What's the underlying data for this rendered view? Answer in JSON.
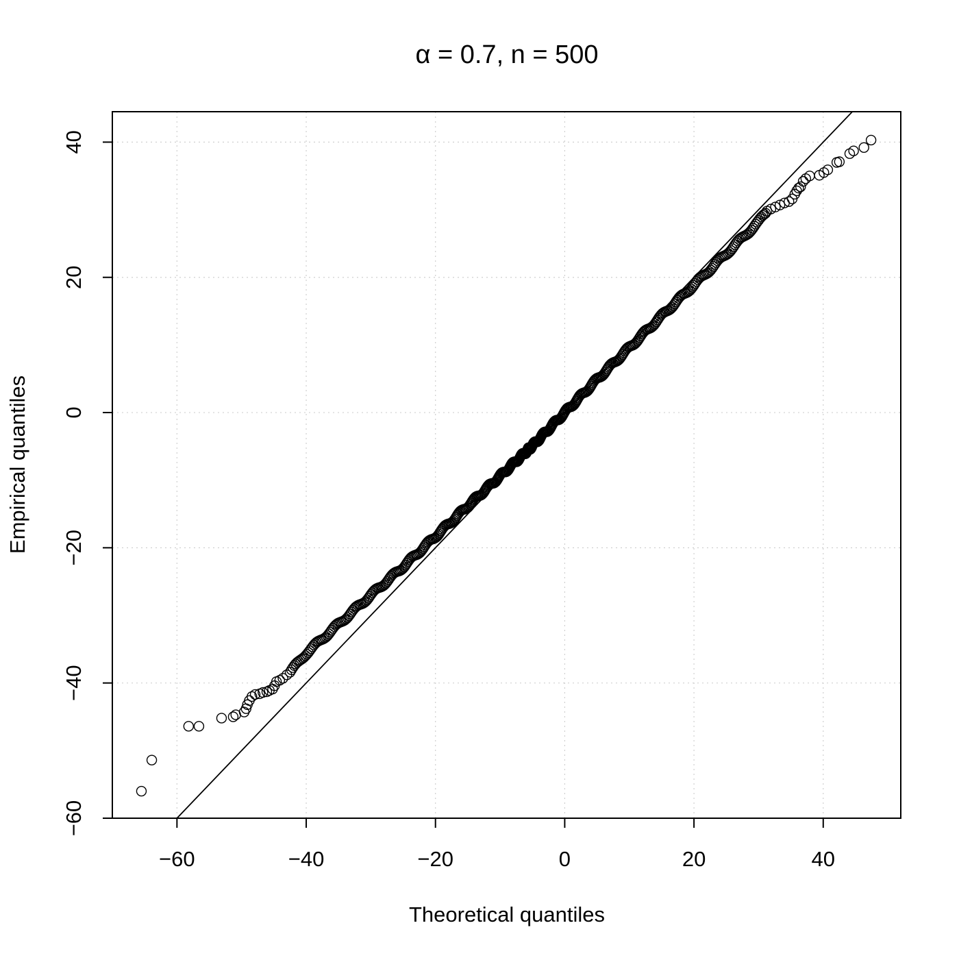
{
  "chart_data": {
    "type": "scatter",
    "title_parts": [
      "α",
      " = 0.7, n = 500"
    ],
    "xlabel": "Theoretical quantiles",
    "ylabel": "Empirical quantiles",
    "xlim": [
      -70,
      52
    ],
    "ylim": [
      -60,
      44.5
    ],
    "x_ticks": [
      -60,
      -40,
      -20,
      0,
      20,
      40
    ],
    "y_ticks": [
      -60,
      -40,
      -20,
      0,
      20,
      40
    ],
    "x_tick_labels": [
      "−60",
      "−40",
      "−20",
      "0",
      "20",
      "40"
    ],
    "y_tick_labels": [
      "−60",
      "−40",
      "−20",
      "0",
      "20",
      "40"
    ],
    "grid": true,
    "reference_line": {
      "slope": 1,
      "intercept": 0
    },
    "n_points": 500,
    "tail_points": [
      {
        "x": -65.5,
        "y": -56.0
      },
      {
        "x": -63.9,
        "y": -51.4
      },
      {
        "x": -58.2,
        "y": -46.4
      },
      {
        "x": -56.6,
        "y": -46.4
      },
      {
        "x": -53.1,
        "y": -45.2
      },
      {
        "x": -51.3,
        "y": -45.0
      },
      {
        "x": -50.9,
        "y": -44.7
      },
      {
        "x": -49.6,
        "y": -44.3
      },
      {
        "x": -49.3,
        "y": -43.8
      },
      {
        "x": -49.1,
        "y": -43.2
      },
      {
        "x": -48.8,
        "y": -42.6
      },
      {
        "x": -48.4,
        "y": -42.0
      },
      {
        "x": -47.9,
        "y": -41.7
      },
      {
        "x": -47.2,
        "y": -41.6
      },
      {
        "x": -46.7,
        "y": -41.4
      },
      {
        "x": -46.1,
        "y": -41.3
      },
      {
        "x": -45.7,
        "y": -41.1
      },
      {
        "x": -45.2,
        "y": -40.9
      },
      {
        "x": -44.9,
        "y": -40.4
      },
      {
        "x": -44.6,
        "y": -39.8
      },
      {
        "x": -44.1,
        "y": -39.6
      },
      {
        "x": -43.6,
        "y": -39.3
      },
      {
        "x": -43.0,
        "y": -38.8
      },
      {
        "x": -42.5,
        "y": -38.4
      },
      {
        "x": 31.3,
        "y": 29.8
      },
      {
        "x": 31.9,
        "y": 30.1
      },
      {
        "x": 32.6,
        "y": 30.4
      },
      {
        "x": 33.3,
        "y": 30.7
      },
      {
        "x": 34.0,
        "y": 31.0
      },
      {
        "x": 34.7,
        "y": 31.2
      },
      {
        "x": 35.2,
        "y": 31.6
      },
      {
        "x": 35.6,
        "y": 32.3
      },
      {
        "x": 35.9,
        "y": 32.8
      },
      {
        "x": 36.2,
        "y": 33.2
      },
      {
        "x": 36.5,
        "y": 33.4
      },
      {
        "x": 36.9,
        "y": 34.2
      },
      {
        "x": 37.3,
        "y": 34.6
      },
      {
        "x": 37.9,
        "y": 35.0
      },
      {
        "x": 39.4,
        "y": 35.1
      },
      {
        "x": 40.1,
        "y": 35.5
      },
      {
        "x": 40.7,
        "y": 35.9
      },
      {
        "x": 42.1,
        "y": 37.0
      },
      {
        "x": 42.5,
        "y": 37.1
      },
      {
        "x": 44.1,
        "y": 38.3
      },
      {
        "x": 44.7,
        "y": 38.7
      },
      {
        "x": 46.3,
        "y": 39.2
      },
      {
        "x": 47.4,
        "y": 40.3
      }
    ],
    "body_curve": [
      {
        "x": -42.5,
        "y": -38.4
      },
      {
        "x": -40,
        "y": -35.6
      },
      {
        "x": -35,
        "y": -31.3
      },
      {
        "x": -30,
        "y": -27.0
      },
      {
        "x": -25,
        "y": -22.8
      },
      {
        "x": -20,
        "y": -18.3
      },
      {
        "x": -15,
        "y": -13.8
      },
      {
        "x": -10,
        "y": -9.4
      },
      {
        "x": -5,
        "y": -4.9
      },
      {
        "x": 0,
        "y": 0
      },
      {
        "x": 5,
        "y": 4.9
      },
      {
        "x": 10,
        "y": 9.6
      },
      {
        "x": 15,
        "y": 14.3
      },
      {
        "x": 20,
        "y": 18.9
      },
      {
        "x": 25,
        "y": 23.5
      },
      {
        "x": 30,
        "y": 28.2
      },
      {
        "x": 31.3,
        "y": 29.8
      }
    ]
  }
}
